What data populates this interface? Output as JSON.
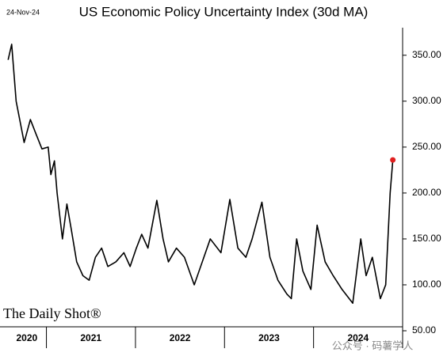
{
  "chart_data": {
    "type": "line",
    "title": "US Economic Policy Uncertainty Index (30d MA)",
    "date_label": "24-Nov-24",
    "source": "The Daily Shot®",
    "watermark": "公众号 · 码薯学人",
    "x": [
      2020.57,
      2020.61,
      2020.66,
      2020.75,
      2020.82,
      2020.88,
      2020.95,
      2021.02,
      2021.05,
      2021.09,
      2021.12,
      2021.18,
      2021.23,
      2021.28,
      2021.34,
      2021.41,
      2021.48,
      2021.55,
      2021.62,
      2021.69,
      2021.78,
      2021.87,
      2021.94,
      2022.01,
      2022.07,
      2022.14,
      2022.24,
      2022.31,
      2022.37,
      2022.46,
      2022.55,
      2022.66,
      2022.75,
      2022.84,
      2022.96,
      2023.06,
      2023.15,
      2023.24,
      2023.31,
      2023.42,
      2023.51,
      2023.6,
      2023.7,
      2023.75,
      2023.81,
      2023.88,
      2023.97,
      2024.04,
      2024.13,
      2024.22,
      2024.32,
      2024.44,
      2024.53,
      2024.59,
      2024.66,
      2024.75,
      2024.81,
      2024.86,
      2024.89
    ],
    "series": [
      {
        "name": "EPU 30d MA",
        "color": "#000000",
        "last_point_color": "#e02020",
        "values": [
          345,
          362,
          300,
          255,
          280,
          265,
          248,
          250,
          220,
          235,
          200,
          150,
          188,
          160,
          125,
          110,
          105,
          130,
          140,
          120,
          125,
          135,
          120,
          140,
          155,
          140,
          192,
          150,
          125,
          140,
          130,
          100,
          125,
          150,
          135,
          193,
          140,
          130,
          150,
          190,
          130,
          105,
          90,
          85,
          150,
          115,
          95,
          165,
          125,
          110,
          95,
          80,
          150,
          110,
          130,
          85,
          100,
          200,
          236
        ]
      }
    ],
    "xlim": [
      2020.55,
      2025
    ],
    "xticks": [
      {
        "value": 2020.78,
        "label": "2020"
      },
      {
        "value": 2021.5,
        "label": "2021"
      },
      {
        "value": 2022.5,
        "label": "2022"
      },
      {
        "value": 2023.5,
        "label": "2023"
      },
      {
        "value": 2024.5,
        "label": "2024"
      }
    ],
    "ylim": [
      50,
      380
    ],
    "yticks": [
      {
        "value": 50,
        "label": "50.00"
      },
      {
        "value": 100,
        "label": "100.00"
      },
      {
        "value": 150,
        "label": "150.00"
      },
      {
        "value": 200,
        "label": "200.00"
      },
      {
        "value": 250,
        "label": "250.00"
      },
      {
        "value": 300,
        "label": "300.00"
      },
      {
        "value": 350,
        "label": "350.00"
      }
    ]
  }
}
